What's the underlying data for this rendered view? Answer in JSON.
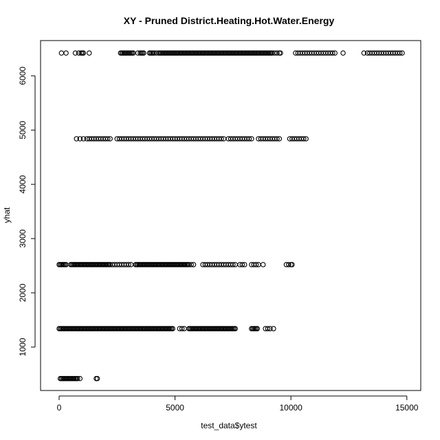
{
  "chart_data": {
    "type": "scatter",
    "title": "XY - Pruned District.Heating.Hot.Water.Energy",
    "xlabel": "test_data$ytest",
    "ylabel": "yhat",
    "xlim": [
      -800,
      15600
    ],
    "ylim": [
      200,
      6650
    ],
    "xticks": [
      0,
      5000,
      10000,
      15000
    ],
    "yticks": [
      1000,
      2000,
      3000,
      4000,
      5000,
      6000
    ],
    "grid": false,
    "legend": "none",
    "marker": "open-circle",
    "marker_color": "#000000",
    "series": [
      {
        "y": 6420,
        "x": [
          100,
          300,
          700,
          850,
          950,
          1000,
          1050,
          1300,
          2650,
          2700,
          2750,
          2800,
          2850,
          2900,
          2950,
          3000,
          3050,
          3100,
          3150,
          3200,
          3400,
          3500,
          3550,
          3600,
          3650,
          3900,
          3950,
          4000,
          4050,
          4100,
          4200,
          4300,
          4350,
          4400,
          4450,
          4500,
          4550,
          4600,
          4650,
          4700,
          4750,
          4800,
          4850,
          4900,
          4950,
          5000,
          5050,
          5100,
          5150,
          5200,
          5250,
          5300,
          5350,
          5400,
          5450,
          5500,
          5550,
          5600,
          5650,
          5700,
          5750,
          5800,
          5850,
          5900,
          5950,
          6000,
          6050,
          6100,
          6150,
          6200,
          6250,
          6300,
          6350,
          6400,
          6450,
          6500,
          6550,
          6600,
          6650,
          6700,
          6750,
          6800,
          6850,
          6900,
          6950,
          7000,
          7050,
          7100,
          7150,
          7200,
          7250,
          7300,
          7350,
          7400,
          7450,
          7500,
          7550,
          7600,
          7650,
          7700,
          7750,
          7800,
          7850,
          7900,
          7950,
          8000,
          8050,
          8100,
          8150,
          8200,
          8250,
          8300,
          8350,
          8400,
          8450,
          8500,
          8550,
          8600,
          8650,
          8700,
          8750,
          8800,
          8850,
          8900,
          8950,
          9000,
          9050,
          9100,
          9150,
          9200,
          9300,
          9400,
          9500,
          9550,
          10200,
          10300,
          10400,
          10500,
          10600,
          10700,
          10800,
          10900,
          11000,
          11100,
          11200,
          11300,
          11400,
          11500,
          11600,
          11700,
          11800,
          11900,
          12250,
          13150,
          13300,
          13400,
          13500,
          13600,
          13700,
          13800,
          13900,
          14000,
          14100,
          14200,
          14300,
          14400,
          14500,
          14600,
          14700,
          14800
        ]
      },
      {
        "y": 4840,
        "x": [
          750,
          900,
          1050,
          1200,
          1300,
          1400,
          1500,
          1600,
          1700,
          1800,
          1900,
          2000,
          2100,
          2200,
          2500,
          2600,
          2700,
          2800,
          2900,
          3000,
          3100,
          3200,
          3300,
          3400,
          3500,
          3600,
          3700,
          3800,
          3900,
          4000,
          4100,
          4200,
          4300,
          4400,
          4500,
          4600,
          4700,
          4800,
          4900,
          5000,
          5100,
          5200,
          5300,
          5400,
          5500,
          5600,
          5700,
          5800,
          5900,
          6000,
          6100,
          6200,
          6300,
          6400,
          6500,
          6600,
          6700,
          6800,
          6900,
          7000,
          7100,
          7300,
          7400,
          7500,
          7600,
          7700,
          7800,
          7900,
          8000,
          8100,
          8200,
          8300,
          8600,
          8700,
          8800,
          8900,
          9000,
          9100,
          9200,
          9300,
          9400,
          9500,
          9950,
          10050,
          10150,
          10250,
          10350,
          10450,
          10550,
          10650
        ]
      },
      {
        "y": 2520,
        "x": [
          0,
          50,
          100,
          150,
          200,
          250,
          300,
          500,
          550,
          600,
          650,
          700,
          750,
          800,
          850,
          900,
          950,
          1000,
          1050,
          1100,
          1150,
          1200,
          1250,
          1300,
          1350,
          1400,
          1450,
          1500,
          1550,
          1600,
          1650,
          1700,
          1750,
          1800,
          1850,
          1900,
          1950,
          2000,
          2050,
          2100,
          2150,
          2200,
          2300,
          2400,
          2500,
          2600,
          2700,
          2800,
          2900,
          3000,
          3100,
          3300,
          3350,
          3400,
          3450,
          3500,
          3550,
          3600,
          3650,
          3700,
          3750,
          3800,
          3850,
          3900,
          3950,
          4000,
          4050,
          4100,
          4150,
          4200,
          4250,
          4300,
          4350,
          4400,
          4450,
          4500,
          4550,
          4600,
          4650,
          4700,
          4750,
          4800,
          4850,
          4900,
          4950,
          5000,
          5050,
          5100,
          5150,
          5200,
          5250,
          5300,
          5350,
          5400,
          5450,
          5500,
          5550,
          5600,
          5700,
          5800,
          6200,
          6300,
          6400,
          6500,
          6600,
          6700,
          6800,
          6900,
          7000,
          7100,
          7200,
          7300,
          7400,
          7500,
          7600,
          7800,
          7900,
          8000,
          8300,
          8400,
          8500,
          8600,
          8800,
          9800,
          9900,
          10000,
          10050
        ]
      },
      {
        "y": 1340,
        "x": [
          0,
          50,
          100,
          150,
          200,
          250,
          300,
          350,
          400,
          450,
          500,
          550,
          600,
          650,
          700,
          750,
          800,
          850,
          900,
          950,
          1000,
          1050,
          1100,
          1150,
          1200,
          1250,
          1300,
          1350,
          1400,
          1450,
          1500,
          1550,
          1600,
          1650,
          1700,
          1750,
          1800,
          1850,
          1900,
          1950,
          2000,
          2050,
          2100,
          2150,
          2200,
          2250,
          2300,
          2350,
          2400,
          2450,
          2500,
          2550,
          2600,
          2650,
          2700,
          2750,
          2800,
          2850,
          2900,
          2950,
          3000,
          3050,
          3100,
          3150,
          3200,
          3250,
          3300,
          3350,
          3400,
          3450,
          3500,
          3550,
          3600,
          3650,
          3700,
          3750,
          3800,
          3850,
          3900,
          3950,
          4000,
          4050,
          4100,
          4150,
          4200,
          4250,
          4300,
          4350,
          4400,
          4450,
          4500,
          4550,
          4600,
          4650,
          4700,
          4750,
          4800,
          4850,
          4900,
          5200,
          5300,
          5400,
          5600,
          5650,
          5700,
          5750,
          5800,
          5850,
          5900,
          5950,
          6000,
          6050,
          6100,
          6150,
          6200,
          6250,
          6300,
          6350,
          6400,
          6450,
          6500,
          6550,
          6600,
          6650,
          6700,
          6750,
          6800,
          6850,
          6900,
          6950,
          7000,
          7050,
          7100,
          7150,
          7200,
          7250,
          7300,
          7350,
          7400,
          7450,
          7500,
          7550,
          7600,
          8300,
          8350,
          8400,
          8450,
          8500,
          8550,
          8900,
          9000,
          9100,
          9250
        ]
      },
      {
        "y": 420,
        "x": [
          50,
          100,
          150,
          200,
          250,
          300,
          350,
          400,
          450,
          500,
          550,
          600,
          650,
          700,
          750,
          800,
          900,
          1600,
          1650
        ]
      }
    ]
  }
}
